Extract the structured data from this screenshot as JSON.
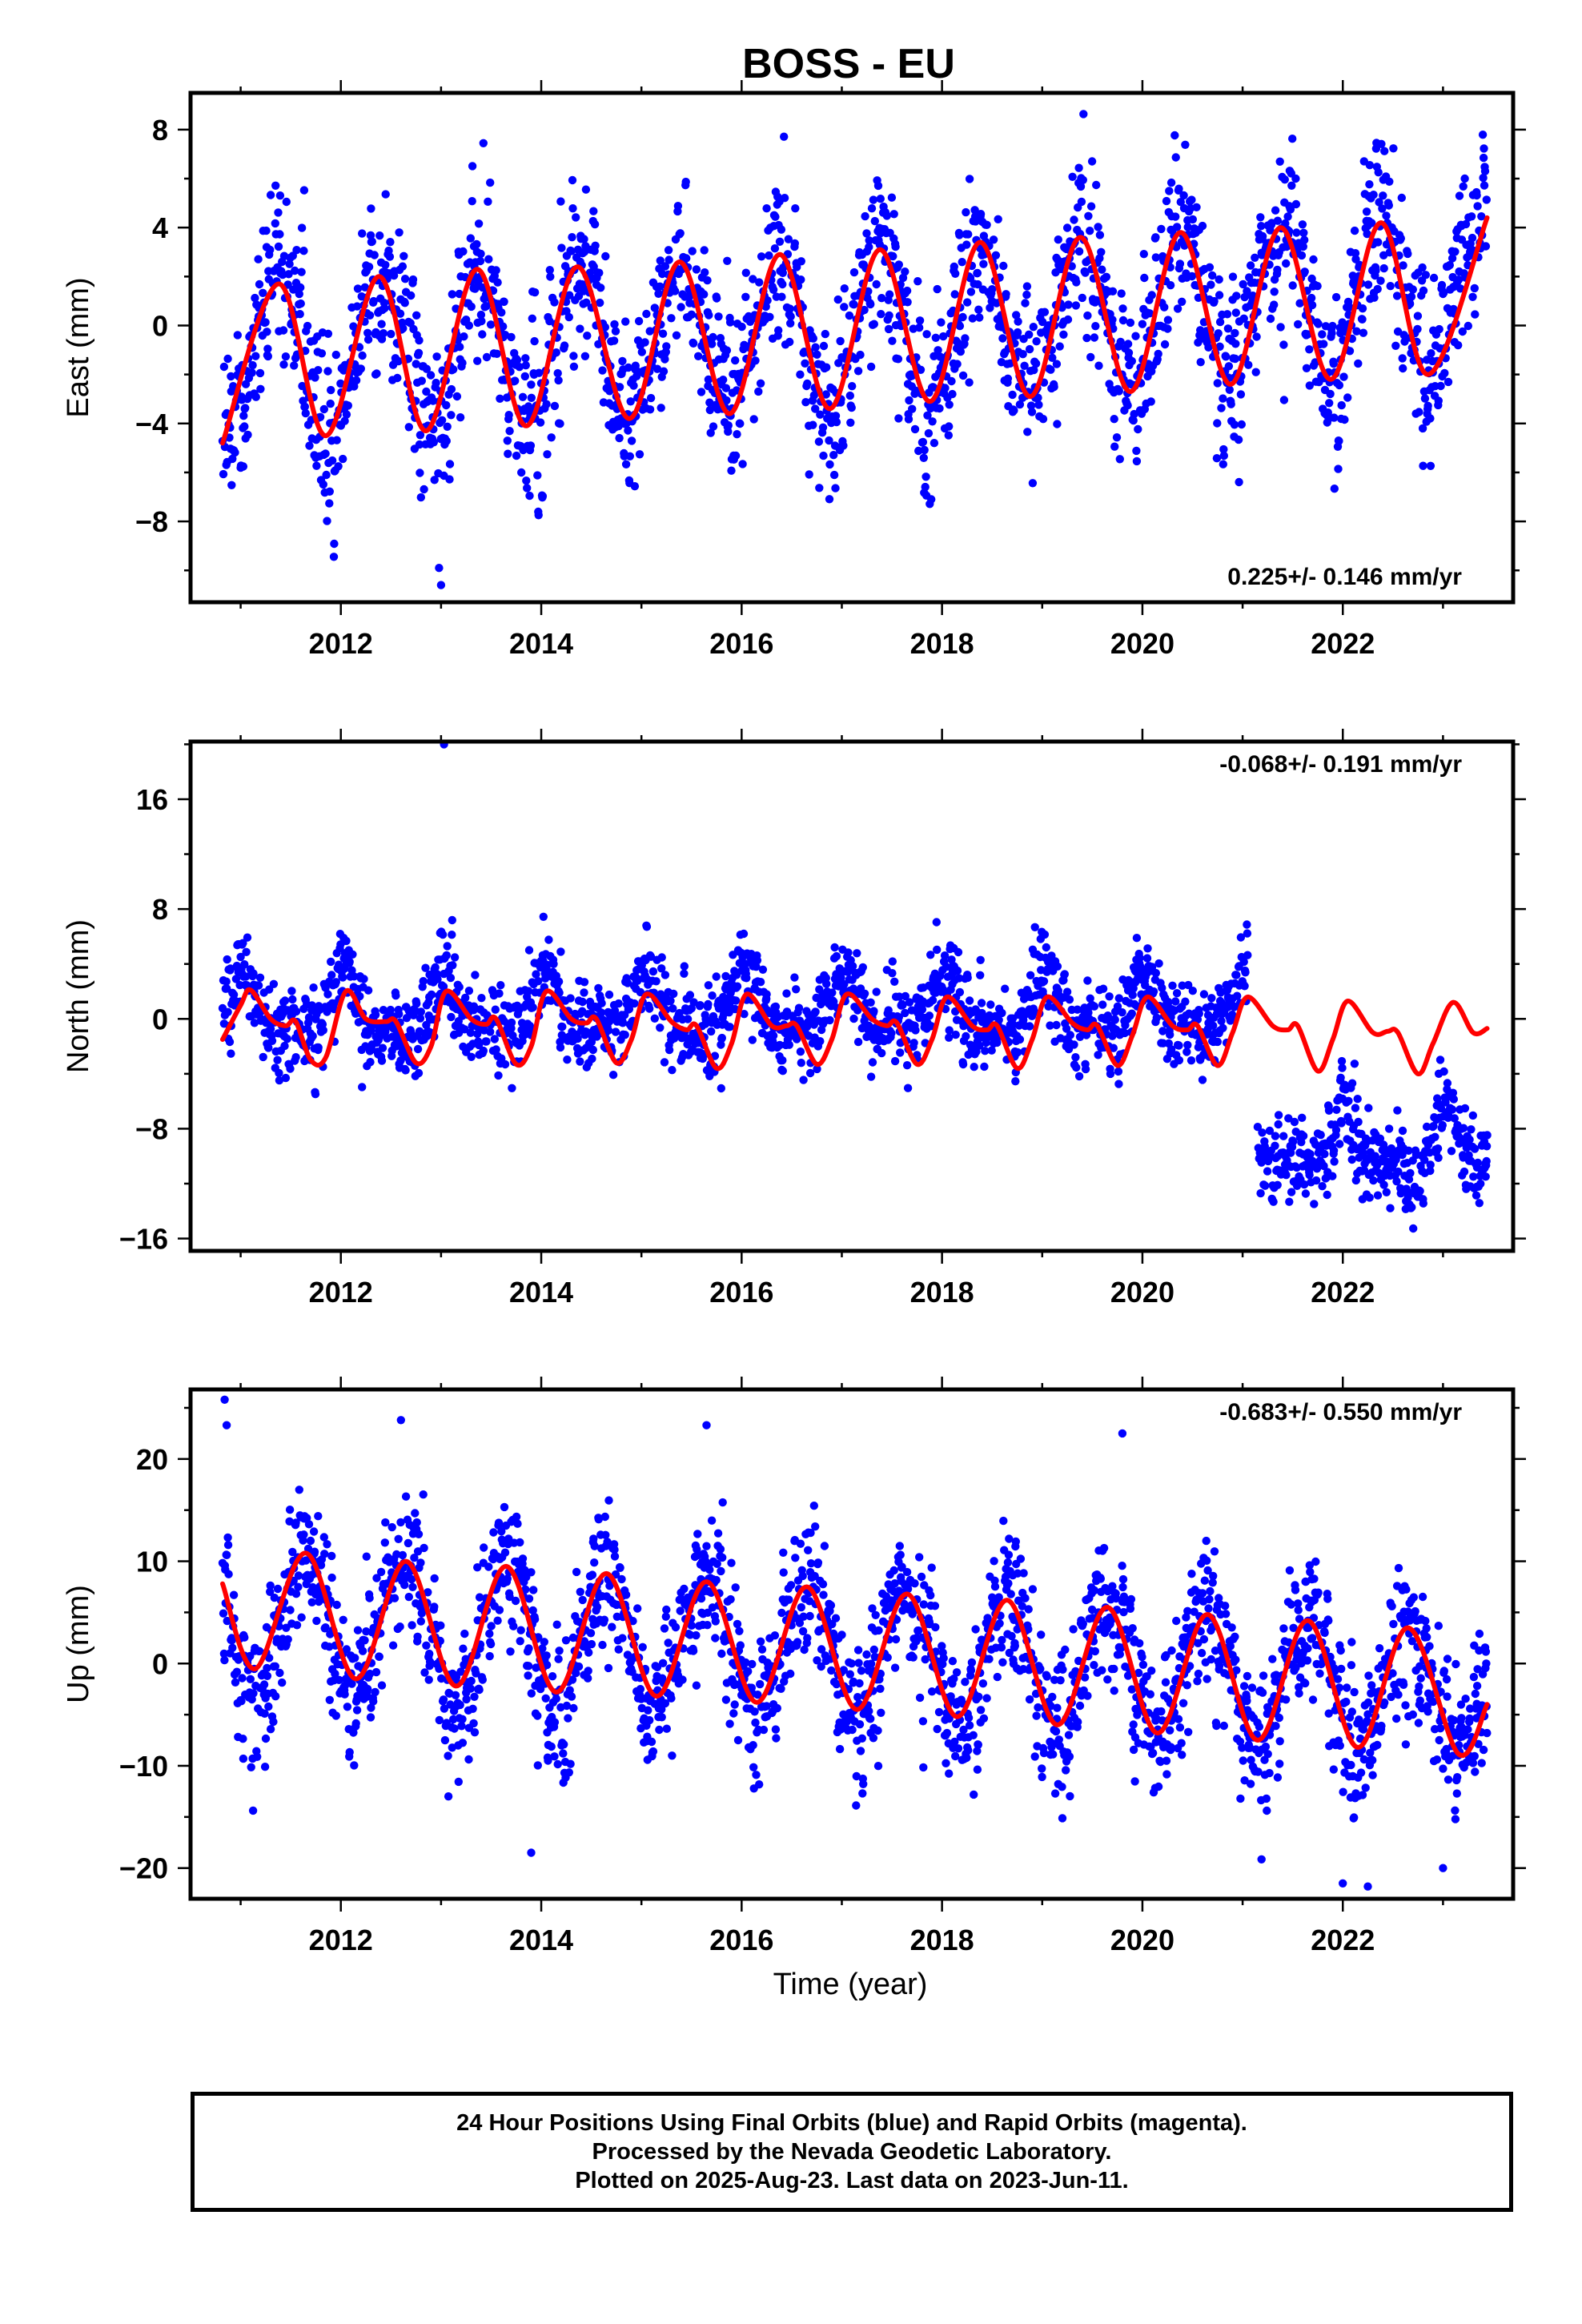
{
  "title": "BOSS - EU",
  "xlabel": "Time (year)",
  "footer": {
    "line1": "24 Hour Positions Using Final Orbits (blue) and Rapid Orbits (magenta).",
    "line2": "Processed by the Nevada Geodetic Laboratory.",
    "line3": "Plotted on 2025-Aug-23. Last data on 2023-Jun-11."
  },
  "colors": {
    "points": "#0000ff",
    "model": "#ff0000",
    "axis": "#000000"
  },
  "chart_data": [
    {
      "type": "scatter",
      "panel": "east",
      "ylabel": "East (mm)",
      "xlim": [
        2010.5,
        2023.7
      ],
      "ylim": [
        -11.3,
        9.5
      ],
      "x_ticks": [
        2012,
        2014,
        2016,
        2018,
        2020,
        2022
      ],
      "y_ticks": [
        8,
        4,
        0,
        -4,
        -8
      ],
      "grid": false,
      "rate_label": "0.225+/- 0.146 mm/yr",
      "rate_position": "bottom-right",
      "series": [
        {
          "kind": "observations",
          "x_start": 2010.82,
          "x_end": 2023.44,
          "seasonal_shape": {
            "anchor_x": [
              2010.8,
              2012.0,
              2014.0,
              2016.0,
              2018.0,
              2020.0,
              2021.0,
              2022.0,
              2023.4
            ],
            "trend": [
              -1.2,
              -1.2,
              -0.9,
              -0.5,
              0.1,
              0.6,
              0.9,
              1.2,
              1.5
            ],
            "amplitude": [
              3.2,
              3.2,
              3.2,
              3.2,
              3.1,
              3.1,
              3.0,
              3.0,
              3.0
            ],
            "peak_phase_year_fraction": 0.38
          },
          "scatter_mm": 1.6,
          "outliers": [
            {
              "x": 2012.98,
              "y": -9.9
            },
            {
              "x": 2013.0,
              "y": -10.6
            }
          ]
        },
        {
          "kind": "model",
          "peaks": [
            [
              2011.38,
              1.7
            ],
            [
              2012.38,
              2.0
            ],
            [
              2013.36,
              2.3
            ],
            [
              2014.36,
              2.4
            ],
            [
              2015.38,
              2.6
            ],
            [
              2016.38,
              2.9
            ],
            [
              2017.38,
              3.1
            ],
            [
              2018.38,
              3.4
            ],
            [
              2019.38,
              3.6
            ],
            [
              2020.38,
              3.8
            ],
            [
              2021.38,
              4.0
            ],
            [
              2022.38,
              4.2
            ],
            [
              2023.44,
              4.4
            ]
          ],
          "troughs": [
            [
              2010.82,
              -4.8
            ],
            [
              2011.85,
              -4.5
            ],
            [
              2012.85,
              -4.3
            ],
            [
              2013.85,
              -4.1
            ],
            [
              2014.88,
              -3.8
            ],
            [
              2015.88,
              -3.6
            ],
            [
              2016.88,
              -3.4
            ],
            [
              2017.88,
              -3.1
            ],
            [
              2018.88,
              -2.9
            ],
            [
              2019.88,
              -2.7
            ],
            [
              2020.88,
              -2.4
            ],
            [
              2021.88,
              -2.2
            ],
            [
              2022.85,
              -2.0
            ]
          ]
        }
      ]
    },
    {
      "type": "scatter",
      "panel": "north",
      "ylabel": "North (mm)",
      "xlim": [
        2010.5,
        2023.7
      ],
      "ylim": [
        -16.9,
        20.2
      ],
      "x_ticks": [
        2012,
        2014,
        2016,
        2018,
        2020,
        2022
      ],
      "y_ticks": [
        16,
        8,
        0,
        -8,
        -16
      ],
      "grid": false,
      "rate_label": "-0.068+/- 0.191 mm/yr",
      "rate_position": "top-right",
      "series": [
        {
          "kind": "observations",
          "x_start": 2010.82,
          "x_end": 2023.44,
          "segments": [
            {
              "x_range": [
                2010.82,
                2021.05
              ],
              "mean": 0.5,
              "annual_amplitude": 2.0,
              "peak_phase_year_fraction": 0.02
            },
            {
              "x_range": [
                2021.15,
                2023.44
              ],
              "mean": -9.3,
              "annual_amplitude": 1.6,
              "peak_phase_year_fraction": 0.02,
              "dip": {
                "x": 2022.75,
                "depth": -14.0
              }
            }
          ],
          "scatter_mm": 1.5,
          "outliers": [
            {
              "x": 2013.03,
              "y": 20.0
            }
          ]
        },
        {
          "kind": "model",
          "points": [
            [
              2010.82,
              -1.5
            ],
            [
              2011.0,
              1.0
            ],
            [
              2011.1,
              2.1
            ],
            [
              2011.3,
              0.0
            ],
            [
              2011.45,
              -0.5
            ],
            [
              2011.55,
              -0.2
            ],
            [
              2011.7,
              -3.0
            ],
            [
              2011.85,
              -2.8
            ],
            [
              2012.05,
              2.0
            ],
            [
              2012.25,
              0.0
            ],
            [
              2012.45,
              -0.2
            ],
            [
              2012.55,
              -0.2
            ],
            [
              2012.75,
              -3.2
            ],
            [
              2012.9,
              -2.0
            ],
            [
              2013.05,
              2.0
            ],
            [
              2013.3,
              0.0
            ],
            [
              2013.45,
              -0.4
            ],
            [
              2013.55,
              0.0
            ],
            [
              2013.75,
              -3.3
            ],
            [
              2013.9,
              -2.0
            ],
            [
              2014.05,
              2.0
            ],
            [
              2014.3,
              0.0
            ],
            [
              2014.45,
              -0.3
            ],
            [
              2014.55,
              0.0
            ],
            [
              2014.75,
              -3.2
            ],
            [
              2014.9,
              -1.5
            ],
            [
              2015.05,
              1.8
            ],
            [
              2015.3,
              -0.2
            ],
            [
              2015.45,
              -0.8
            ],
            [
              2015.55,
              -0.5
            ],
            [
              2015.75,
              -3.6
            ],
            [
              2015.9,
              -1.8
            ],
            [
              2016.05,
              1.8
            ],
            [
              2016.3,
              -0.5
            ],
            [
              2016.45,
              -0.5
            ],
            [
              2016.55,
              -0.5
            ],
            [
              2016.75,
              -3.3
            ],
            [
              2016.9,
              -1.5
            ],
            [
              2017.05,
              1.8
            ],
            [
              2017.3,
              0.0
            ],
            [
              2017.45,
              -0.5
            ],
            [
              2017.55,
              -0.3
            ],
            [
              2017.75,
              -3.3
            ],
            [
              2017.9,
              -1.5
            ],
            [
              2018.05,
              1.6
            ],
            [
              2018.3,
              -0.5
            ],
            [
              2018.45,
              -0.8
            ],
            [
              2018.55,
              -0.5
            ],
            [
              2018.75,
              -3.6
            ],
            [
              2018.9,
              -1.5
            ],
            [
              2019.05,
              1.6
            ],
            [
              2019.3,
              -0.3
            ],
            [
              2019.45,
              -0.8
            ],
            [
              2019.55,
              -0.5
            ],
            [
              2019.75,
              -3.4
            ],
            [
              2019.9,
              -1.2
            ],
            [
              2020.05,
              1.6
            ],
            [
              2020.3,
              -0.5
            ],
            [
              2020.45,
              -0.8
            ],
            [
              2020.55,
              -0.5
            ],
            [
              2020.75,
              -3.4
            ],
            [
              2020.9,
              -1.0
            ],
            [
              2021.05,
              1.6
            ],
            [
              2021.3,
              -0.5
            ],
            [
              2021.45,
              -0.8
            ],
            [
              2021.55,
              -0.5
            ],
            [
              2021.75,
              -3.8
            ],
            [
              2021.9,
              -1.5
            ],
            [
              2022.05,
              1.3
            ],
            [
              2022.3,
              -1.0
            ],
            [
              2022.45,
              -0.9
            ],
            [
              2022.55,
              -1.0
            ],
            [
              2022.75,
              -4.0
            ],
            [
              2022.9,
              -1.8
            ],
            [
              2023.1,
              1.2
            ],
            [
              2023.3,
              -1.0
            ],
            [
              2023.44,
              -0.7
            ]
          ]
        }
      ]
    },
    {
      "type": "scatter",
      "panel": "up",
      "ylabel": "Up (mm)",
      "xlim": [
        2010.5,
        2023.7
      ],
      "ylim": [
        -23.0,
        26.8
      ],
      "x_ticks": [
        2012,
        2014,
        2016,
        2018,
        2020,
        2022
      ],
      "y_ticks": [
        20,
        10,
        0,
        -10,
        -20
      ],
      "grid": false,
      "rate_label": "-0.683+/- 0.550 mm/yr",
      "rate_position": "top-right",
      "series": [
        {
          "kind": "observations",
          "x_start": 2010.82,
          "x_end": 2023.44,
          "seasonal_shape": {
            "anchor_x": [
              2010.8,
              2012.0,
              2014.0,
              2016.0,
              2018.0,
              2020.0,
              2022.0,
              2023.4
            ],
            "trend": [
              3.5,
              3.5,
              2.8,
              1.8,
              0.4,
              -0.8,
              -2.0,
              -3.0
            ],
            "amplitude": [
              7.0,
              7.0,
              7.0,
              6.5,
              6.2,
              6.0,
              6.0,
              6.0
            ],
            "peak_phase_year_fraction": 0.65
          },
          "scatter_mm": 3.2,
          "outliers": [
            {
              "x": 2010.84,
              "y": 25.8
            },
            {
              "x": 2010.86,
              "y": 23.3
            },
            {
              "x": 2012.6,
              "y": 23.8
            },
            {
              "x": 2015.65,
              "y": 23.3
            },
            {
              "x": 2019.8,
              "y": 22.5
            },
            {
              "x": 2013.9,
              "y": -18.5
            },
            {
              "x": 2022.0,
              "y": -21.5
            },
            {
              "x": 2022.25,
              "y": -21.8
            },
            {
              "x": 2023.0,
              "y": -20.0
            }
          ]
        },
        {
          "kind": "model",
          "peaks": [
            [
              2011.65,
              10.8
            ],
            [
              2012.65,
              10.0
            ],
            [
              2013.65,
              9.5
            ],
            [
              2014.65,
              8.8
            ],
            [
              2015.65,
              8.0
            ],
            [
              2016.65,
              7.5
            ],
            [
              2017.65,
              6.8
            ],
            [
              2018.65,
              6.2
            ],
            [
              2019.65,
              5.5
            ],
            [
              2020.65,
              4.8
            ],
            [
              2021.65,
              4.2
            ],
            [
              2022.65,
              3.5
            ]
          ],
          "troughs": [
            [
              2011.15,
              -0.5
            ],
            [
              2012.15,
              -1.5
            ],
            [
              2013.15,
              -2.2
            ],
            [
              2014.15,
              -2.8
            ],
            [
              2015.15,
              -3.2
            ],
            [
              2016.15,
              -3.8
            ],
            [
              2017.15,
              -4.5
            ],
            [
              2018.15,
              -5.2
            ],
            [
              2019.15,
              -6.0
            ],
            [
              2020.15,
              -6.8
            ],
            [
              2021.15,
              -7.5
            ],
            [
              2022.15,
              -8.2
            ],
            [
              2023.15,
              -8.8
            ]
          ],
          "x_start": 2010.82,
          "y_start": 7.8,
          "x_end": 2023.44,
          "y_end": -4.0
        }
      ]
    }
  ]
}
